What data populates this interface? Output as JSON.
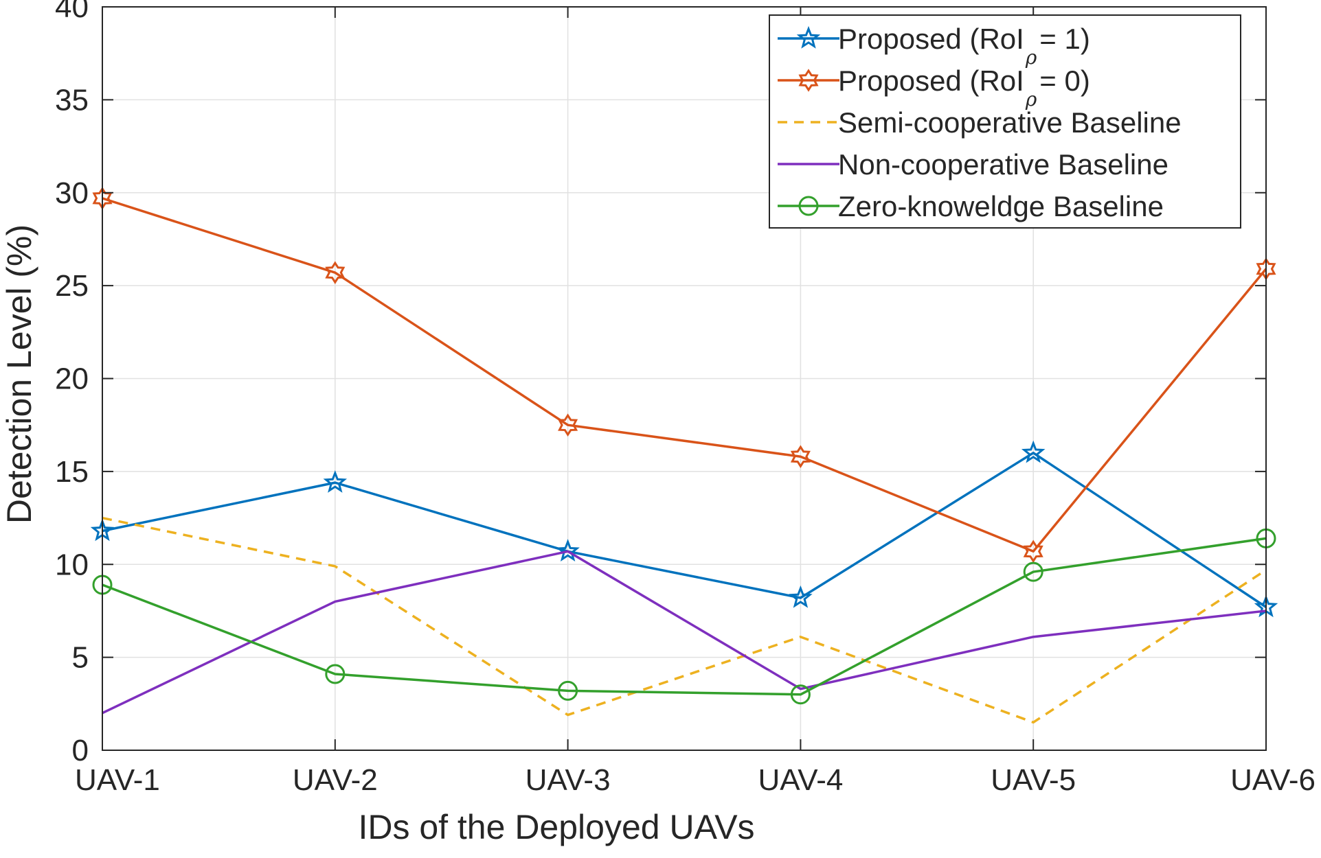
{
  "chart_data": {
    "type": "line",
    "title": "",
    "xlabel": "IDs of the Deployed UAVs",
    "ylabel": "Detection Level (%)",
    "categories": [
      "UAV-1",
      "UAV-2",
      "UAV-3",
      "UAV-4",
      "UAV-5",
      "UAV-6"
    ],
    "ylim": [
      0,
      40
    ],
    "yticks": [
      0,
      5,
      10,
      15,
      20,
      25,
      30,
      35,
      40
    ],
    "grid": true,
    "legend_position": "top-right",
    "series": [
      {
        "name_main": "Proposed (RoI",
        "name_sub": "ρ",
        "name_tail": " = 1)",
        "values": [
          11.8,
          14.4,
          10.7,
          8.2,
          16.0,
          7.7
        ],
        "color": "#0072BD",
        "line_style": "solid",
        "marker": "pentagram"
      },
      {
        "name_main": "Proposed (RoI",
        "name_sub": "ρ",
        "name_tail": " = 0)",
        "values": [
          29.7,
          25.7,
          17.5,
          15.8,
          10.7,
          25.9
        ],
        "color": "#D95319",
        "line_style": "solid",
        "marker": "hexagram"
      },
      {
        "name": "Semi-cooperative Baseline",
        "values": [
          12.5,
          9.9,
          1.9,
          6.1,
          1.5,
          9.7
        ],
        "color": "#EDB120",
        "line_style": "dashed",
        "marker": "none"
      },
      {
        "name": "Non-cooperative Baseline",
        "values": [
          2.0,
          8.0,
          10.7,
          3.3,
          6.1,
          7.5
        ],
        "color": "#7E2FBE",
        "line_style": "solid",
        "marker": "none"
      },
      {
        "name": "Zero-knoweldge Baseline",
        "values": [
          8.9,
          4.1,
          3.2,
          3.0,
          9.6,
          11.4
        ],
        "color": "#33A02C",
        "line_style": "solid",
        "marker": "circle"
      }
    ]
  }
}
